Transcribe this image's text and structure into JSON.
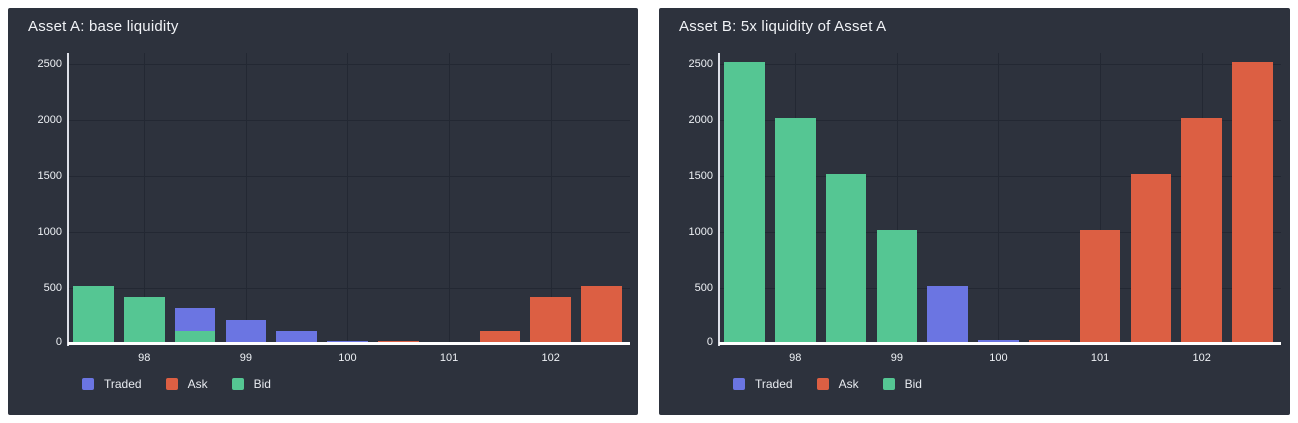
{
  "page": {
    "background": "#ffffff",
    "panel_background": "#2d323d"
  },
  "colors": {
    "grid": "#232833",
    "axis_line": "#ffffff",
    "text": "#f0f2f6",
    "tick_text": "#eef1f5",
    "traded": "#6b75e2",
    "ask": "#dc5f43",
    "bid": "#55c693"
  },
  "chart_data": [
    {
      "type": "bar",
      "title": "Asset A: base liquidity",
      "mode": "overlay",
      "xlabel": "",
      "ylabel": "",
      "x_range": [
        97.25,
        102.78
      ],
      "ylim": [
        0,
        2600
      ],
      "x_ticks": [
        "98",
        "99",
        "100",
        "101",
        "102"
      ],
      "x_tick_values": [
        98,
        99,
        100,
        101,
        102
      ],
      "y_ticks": [
        "0",
        "500",
        "1000",
        "1500",
        "2000",
        "2500"
      ],
      "y_tick_values": [
        0,
        500,
        1000,
        1500,
        2000,
        2500
      ],
      "bar_width": 0.4,
      "grid": "on",
      "legend_position": "bottom-left",
      "legend": [
        "Traded",
        "Ask",
        "Bid"
      ],
      "series": [
        {
          "name": "Traded",
          "color": "#6b75e2",
          "x": [
            98.5,
            99,
            99.5,
            100
          ],
          "values": [
            300,
            200,
            100,
            10
          ]
        },
        {
          "name": "Ask",
          "color": "#dc5f43",
          "x": [
            100.5,
            101.5,
            102,
            102.5
          ],
          "values": [
            10,
            100,
            400,
            500
          ]
        },
        {
          "name": "Bid",
          "color": "#55c693",
          "x": [
            97.5,
            98,
            98.5
          ],
          "values": [
            500,
            400,
            100
          ]
        }
      ]
    },
    {
      "type": "bar",
      "title": "Asset B: 5x liquidity of Asset A",
      "mode": "overlay",
      "xlabel": "",
      "ylabel": "",
      "x_range": [
        97.25,
        102.78
      ],
      "ylim": [
        0,
        2600
      ],
      "x_ticks": [
        "98",
        "99",
        "100",
        "101",
        "102"
      ],
      "x_tick_values": [
        98,
        99,
        100,
        101,
        102
      ],
      "y_ticks": [
        "0",
        "500",
        "1000",
        "1500",
        "2000",
        "2500"
      ],
      "y_tick_values": [
        0,
        500,
        1000,
        1500,
        2000,
        2500
      ],
      "bar_width": 0.4,
      "grid": "on",
      "legend_position": "bottom-left",
      "legend": [
        "Traded",
        "Ask",
        "Bid"
      ],
      "series": [
        {
          "name": "Traded",
          "color": "#6b75e2",
          "x": [
            99.5,
            100
          ],
          "values": [
            500,
            20
          ]
        },
        {
          "name": "Ask",
          "color": "#dc5f43",
          "x": [
            100.5,
            101,
            101.5,
            102,
            102.5
          ],
          "values": [
            20,
            1000,
            1500,
            2000,
            2500
          ]
        },
        {
          "name": "Bid",
          "color": "#55c693",
          "x": [
            97.5,
            98,
            98.5,
            99
          ],
          "values": [
            2500,
            2000,
            1500,
            1000
          ]
        }
      ]
    }
  ]
}
